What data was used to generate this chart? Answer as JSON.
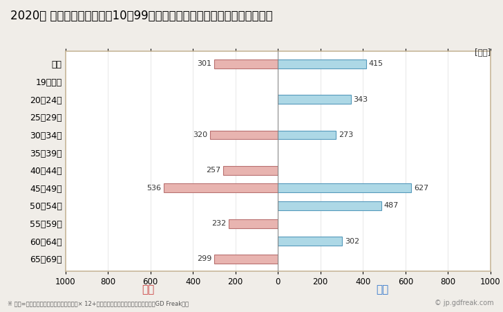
{
  "title": "2020年 民間企業（従業者数10～99人）フルタイム労働者の男女別平均年収",
  "ylabel_unit": "[万円]",
  "categories": [
    "全体",
    "19歳以下",
    "20～24歳",
    "25～29歳",
    "30～34歳",
    "35～39歳",
    "40～44歳",
    "45～49歳",
    "50～54歳",
    "55～59歳",
    "60～64歳",
    "65～69歳"
  ],
  "female_values": [
    301,
    0,
    0,
    0,
    320,
    0,
    257,
    536,
    0,
    232,
    0,
    299
  ],
  "male_values": [
    415,
    0,
    343,
    0,
    273,
    0,
    0,
    627,
    487,
    0,
    302,
    0
  ],
  "female_color": "#e8b4b0",
  "male_color": "#add8e6",
  "female_edge_color": "#b87070",
  "male_edge_color": "#5599bb",
  "female_label": "女性",
  "male_label": "男性",
  "female_label_color": "#cc4444",
  "male_label_color": "#3377cc",
  "xlim": [
    -1000,
    1000
  ],
  "xticks": [
    -1000,
    -800,
    -600,
    -400,
    -200,
    0,
    200,
    400,
    600,
    800,
    1000
  ],
  "xticklabels": [
    "1000",
    "800",
    "600",
    "400",
    "200",
    "0",
    "200",
    "400",
    "600",
    "800",
    "1000"
  ],
  "background_color": "#f0ede8",
  "plot_bg_color": "#ffffff",
  "title_fontsize": 12,
  "bar_height": 0.5,
  "annotation_fontsize": 8,
  "footnote": "※ 年収=「きまって支給する現金給与額」× 12+「年間賞与その他特別給与額」としてGD Freak推計",
  "watermark": "© jp.gdfreak.com",
  "border_color": "#c8b89a"
}
